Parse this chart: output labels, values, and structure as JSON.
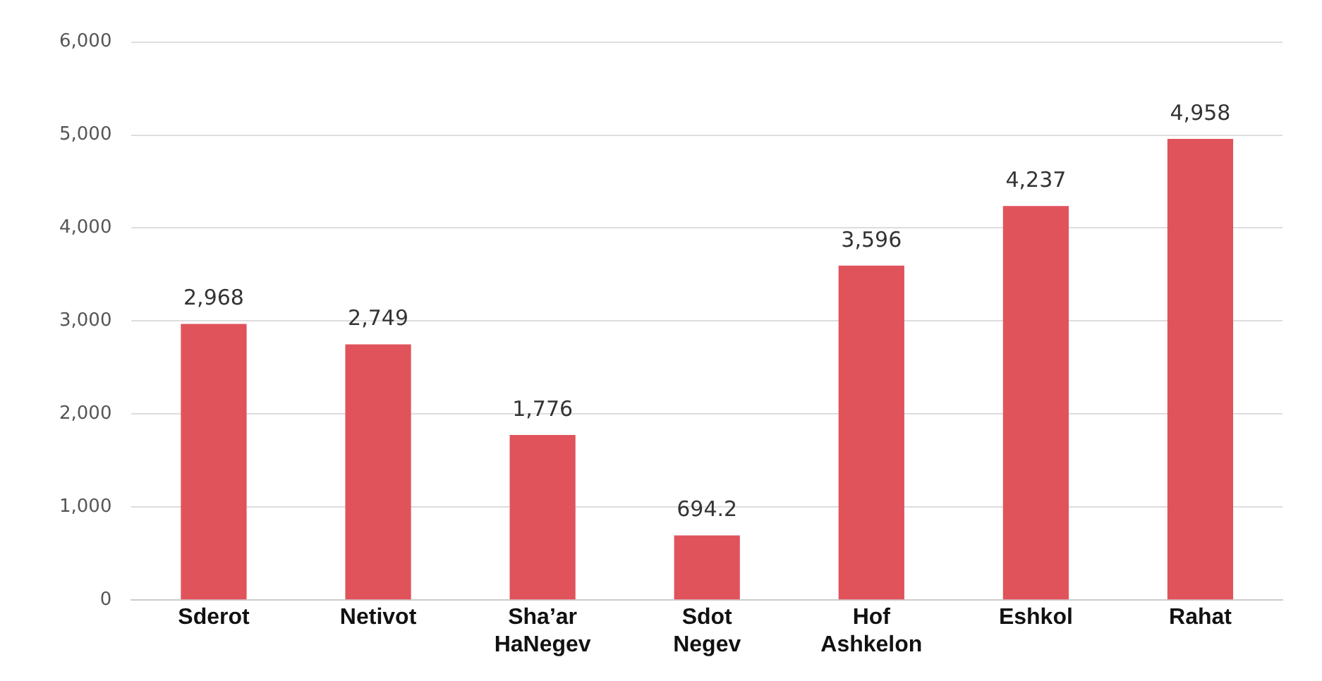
{
  "chart_data": {
    "type": "bar",
    "categories": [
      "Sderot",
      "Netivot",
      "Sha’ar HaNegev",
      "Sdot Negev",
      "Hof Ashkelon",
      "Eshkol",
      "Rahat"
    ],
    "values": [
      2968,
      2749,
      1776,
      694.2,
      3596,
      4237,
      4958
    ],
    "value_labels": [
      "2,968",
      "2,749",
      "1,776",
      "694.2",
      "3,596",
      "4,237",
      "4,958"
    ],
    "color": "#e0535b",
    "ylim": [
      0,
      6000
    ],
    "yticks": [
      0,
      {
        "value": 1000,
        "label": "1,000"
      },
      {
        "value": 2000,
        "label": "2,000"
      },
      {
        "value": 3000,
        "label": "3,000"
      },
      {
        "value": 4000,
        "label": "4,000"
      },
      {
        "value": 5000,
        "label": "5,000"
      },
      {
        "value": 6000,
        "label": "6,000"
      }
    ],
    "grid": "y"
  }
}
